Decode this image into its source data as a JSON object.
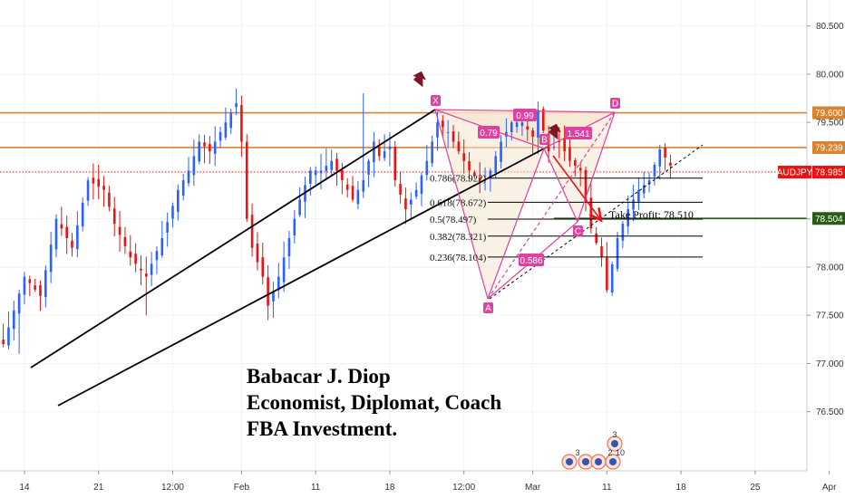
{
  "chart_data": {
    "type": "candlestick",
    "symbol": "AUDJPY",
    "y_axis": {
      "min": 76.15,
      "max": 80.6,
      "ticks": [
        76.5,
        77.0,
        77.5,
        78.0,
        78.5,
        79.0,
        79.5,
        80.0,
        80.5
      ],
      "tick_labels": [
        "76.500",
        "77.000",
        "77.500",
        "78.000",
        "78.500",
        "79.000",
        "79.500",
        "80.000",
        "80.500"
      ]
    },
    "x_axis": {
      "labels": [
        "14",
        "21",
        "12:00",
        "Feb",
        "11",
        "18",
        "12:00",
        "Mar",
        "11",
        "18",
        "25",
        "Apr",
        "8"
      ],
      "label_index": [
        4,
        18,
        32,
        45,
        59,
        73,
        87,
        100,
        114,
        128,
        142,
        156,
        170
      ],
      "start_date": "2019-01-10"
    },
    "price_tags": [
      {
        "label": "79.600",
        "value": 79.6,
        "color": "#d9832f"
      },
      {
        "label": "79.239",
        "value": 79.239,
        "color": "#d9832f"
      },
      {
        "label": "AUDJPY",
        "value": 78.985,
        "color": "#ee1111"
      },
      {
        "label": "78.985",
        "value": 78.985,
        "color": "#ee1111"
      },
      {
        "label": "78.504",
        "value": 78.504,
        "color": "#2d5a1b"
      }
    ],
    "horizontal_lines": [
      {
        "value": 79.6,
        "color": "#d9832f",
        "style": "solid"
      },
      {
        "value": 79.239,
        "color": "#d9832f",
        "style": "solid"
      },
      {
        "value": 78.985,
        "color": "#ee1111",
        "style": "dotted"
      },
      {
        "value": 78.504,
        "color": "#2d5a1b",
        "style": "solid"
      }
    ],
    "fibonacci": [
      {
        "label": "0.786(78.922)",
        "value": 78.922
      },
      {
        "label": "0.618(78.672)",
        "value": 78.672
      },
      {
        "label": "0.5(78.497)",
        "value": 78.497
      },
      {
        "label": "0.382(78.321)",
        "value": 78.321
      },
      {
        "label": "0.236(78.104)",
        "value": 78.104
      }
    ],
    "harmonic_pattern": {
      "points": [
        {
          "label": "X",
          "index": 101,
          "value": 79.63
        },
        {
          "label": "A",
          "index": 114,
          "value": 77.76
        },
        {
          "label": "B",
          "index": 124,
          "value": 79.22
        },
        {
          "label": "C",
          "index": 131,
          "value": 78.44
        },
        {
          "label": "D",
          "index": 140,
          "value": 79.63
        }
      ],
      "ratios": [
        "0.99",
        "0.79",
        "1.541",
        "0.586"
      ]
    },
    "take_profit": {
      "label": "Take Profit: 78.510",
      "value": 78.51
    },
    "watermark_lines": [
      "Babacar J. Diop",
      "Economist, Diplomat, Coach",
      "FBA Investment."
    ],
    "event_badges": [
      "3",
      "3",
      "2",
      "10"
    ],
    "colors": {
      "up_candle": "#2962ff",
      "down_candle": "#ee1111",
      "pattern": "#e040a0",
      "pattern_fill": "#f5e6cf",
      "arrow": "#ee1111",
      "marker": "#7a1626"
    }
  }
}
